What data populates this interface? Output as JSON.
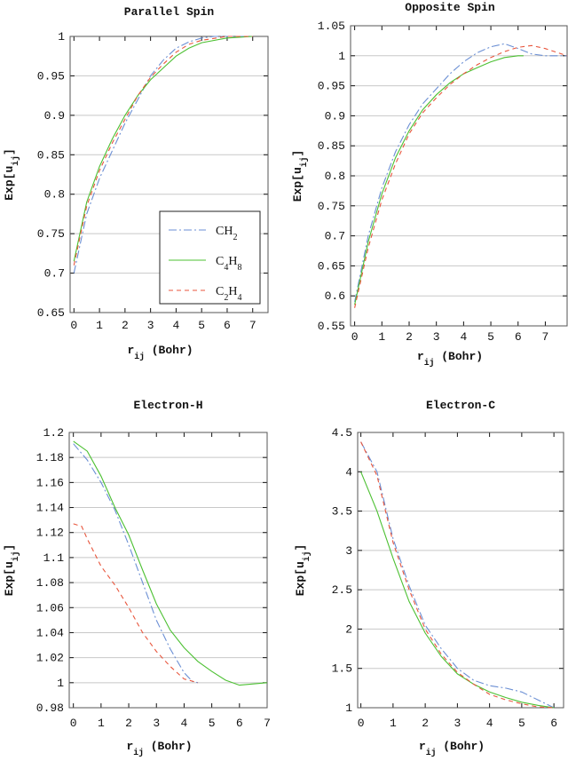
{
  "chart_data": [
    {
      "type": "line",
      "title": "Parallel Spin",
      "xlabel": "r_ij (Bohr)",
      "ylabel": "Exp[u_ij]",
      "xlim": [
        -0.15,
        7.6
      ],
      "ylim": [
        0.65,
        1.0
      ],
      "xticks": [
        0,
        1,
        2,
        3,
        4,
        5,
        6,
        7
      ],
      "yticks": [
        0.65,
        0.7,
        0.75,
        0.8,
        0.85,
        0.9,
        0.95,
        1
      ],
      "ytick_labels": [
        "0.65",
        "0.7",
        "0.75",
        "0.8",
        "0.85",
        "0.9",
        "0.95",
        "1"
      ],
      "grid": "horizontal",
      "legend": "bottom-right",
      "series": [
        {
          "name": "CH2",
          "color": "#6b8fd4",
          "style": "dash-dot",
          "x": [
            0,
            0.5,
            1,
            1.5,
            2,
            2.5,
            3,
            3.5,
            4,
            4.5,
            5,
            5.5,
            7
          ],
          "y": [
            0.7,
            0.775,
            0.82,
            0.855,
            0.89,
            0.92,
            0.95,
            0.97,
            0.985,
            0.993,
            0.998,
            1.0,
            1.0
          ]
        },
        {
          "name": "C4H8",
          "color": "#4cc032",
          "style": "solid",
          "x": [
            0,
            0.5,
            1,
            1.5,
            2,
            2.5,
            3,
            3.5,
            4,
            4.5,
            5,
            6,
            7
          ],
          "y": [
            0.715,
            0.79,
            0.835,
            0.87,
            0.9,
            0.925,
            0.945,
            0.96,
            0.975,
            0.985,
            0.992,
            0.998,
            1.0
          ]
        },
        {
          "name": "C2H4",
          "color": "#e8553c",
          "style": "dashed",
          "x": [
            0,
            0.5,
            1,
            1.5,
            2,
            2.5,
            3,
            3.5,
            4,
            4.5,
            5,
            6,
            7
          ],
          "y": [
            0.71,
            0.785,
            0.83,
            0.865,
            0.895,
            0.925,
            0.948,
            0.965,
            0.98,
            0.99,
            0.995,
            1.0,
            1.0
          ]
        }
      ]
    },
    {
      "type": "line",
      "title": "Opposite Spin",
      "xlabel": "r_ij (Bohr)",
      "ylabel": "Exp[u_ij]",
      "xlim": [
        -0.15,
        7.8
      ],
      "ylim": [
        0.55,
        1.05
      ],
      "xticks": [
        0,
        1,
        2,
        3,
        4,
        5,
        6,
        7
      ],
      "yticks": [
        0.55,
        0.6,
        0.65,
        0.7,
        0.75,
        0.8,
        0.85,
        0.9,
        0.95,
        1,
        1.05
      ],
      "ytick_labels": [
        "0.55",
        "0.6",
        "0.65",
        "0.7",
        "0.75",
        "0.8",
        "0.85",
        "0.9",
        "0.95",
        "1",
        "1.05"
      ],
      "grid": "horizontal",
      "series": [
        {
          "name": "CH2",
          "color": "#6b8fd4",
          "style": "dash-dot",
          "x": [
            0,
            0.5,
            1,
            1.5,
            2,
            2.5,
            3,
            3.5,
            4,
            4.5,
            5,
            5.5,
            6,
            6.5,
            7,
            7.8
          ],
          "y": [
            0.59,
            0.7,
            0.78,
            0.84,
            0.885,
            0.92,
            0.945,
            0.97,
            0.99,
            1.005,
            1.015,
            1.02,
            1.012,
            1.003,
            1.0,
            1.0
          ]
        },
        {
          "name": "C4H8",
          "color": "#4cc032",
          "style": "solid",
          "x": [
            0,
            0.5,
            1,
            1.5,
            2,
            2.5,
            3,
            3.5,
            4,
            4.5,
            5,
            5.5,
            6,
            6.2
          ],
          "y": [
            0.585,
            0.69,
            0.77,
            0.83,
            0.875,
            0.91,
            0.935,
            0.955,
            0.97,
            0.98,
            0.99,
            0.997,
            1.0,
            1.0
          ]
        },
        {
          "name": "C2H4",
          "color": "#e8553c",
          "style": "dashed",
          "x": [
            0,
            0.5,
            1,
            1.5,
            2,
            2.5,
            3,
            3.5,
            4,
            4.5,
            5,
            5.5,
            6,
            6.5,
            7,
            7.8
          ],
          "y": [
            0.58,
            0.68,
            0.76,
            0.82,
            0.87,
            0.905,
            0.93,
            0.952,
            0.97,
            0.985,
            0.997,
            1.007,
            1.014,
            1.017,
            1.012,
            1.0
          ]
        }
      ]
    },
    {
      "type": "line",
      "title": "Electron-H",
      "xlabel": "r_ij (Bohr)",
      "ylabel": "Exp[u_ij]",
      "xlim": [
        -0.15,
        7.0
      ],
      "ylim": [
        0.98,
        1.2
      ],
      "xticks": [
        0,
        1,
        2,
        3,
        4,
        5,
        6,
        7
      ],
      "yticks": [
        0.98,
        1,
        1.02,
        1.04,
        1.06,
        1.08,
        1.1,
        1.12,
        1.14,
        1.16,
        1.18,
        1.2
      ],
      "ytick_labels": [
        "0.98",
        "1",
        "1.02",
        "1.04",
        "1.06",
        "1.08",
        "1.1",
        "1.12",
        "1.14",
        "1.16",
        "1.18",
        "1.2"
      ],
      "grid": "horizontal",
      "series": [
        {
          "name": "CH2",
          "color": "#6b8fd4",
          "style": "dash-dot",
          "x": [
            0,
            0.5,
            1,
            1.5,
            2,
            2.5,
            3,
            3.5,
            4,
            4.3,
            4.5
          ],
          "y": [
            1.191,
            1.178,
            1.16,
            1.138,
            1.11,
            1.08,
            1.05,
            1.027,
            1.008,
            1.001,
            1.0
          ]
        },
        {
          "name": "C4H8",
          "color": "#4cc032",
          "style": "solid",
          "x": [
            0,
            0.5,
            1,
            1.5,
            2,
            2.5,
            3,
            3.5,
            4,
            4.5,
            5,
            5.5,
            6,
            6.5,
            7
          ],
          "y": [
            1.193,
            1.185,
            1.165,
            1.14,
            1.118,
            1.09,
            1.063,
            1.042,
            1.028,
            1.017,
            1.009,
            1.002,
            0.998,
            0.999,
            1.0
          ]
        },
        {
          "name": "C2H4",
          "color": "#e8553c",
          "style": "dashed",
          "x": [
            0,
            0.3,
            0.5,
            1,
            1.5,
            2,
            2.5,
            3,
            3.5,
            4,
            4.5
          ],
          "y": [
            1.127,
            1.125,
            1.115,
            1.093,
            1.078,
            1.06,
            1.04,
            1.025,
            1.013,
            1.003,
            1.0
          ]
        }
      ]
    },
    {
      "type": "line",
      "title": "Electron-C",
      "xlabel": "r_ij (Bohr)",
      "ylabel": "Exp[u_ij]",
      "xlim": [
        -0.1,
        6.3
      ],
      "ylim": [
        1,
        4.5
      ],
      "xticks": [
        0,
        1,
        2,
        3,
        4,
        5,
        6
      ],
      "yticks": [
        1,
        1.5,
        2,
        2.5,
        3,
        3.5,
        4,
        4.5
      ],
      "ytick_labels": [
        "1",
        "1.5",
        "2",
        "2.5",
        "3",
        "3.5",
        "4",
        "4.5"
      ],
      "grid": "horizontal",
      "series": [
        {
          "name": "CH2",
          "color": "#6b8fd4",
          "style": "dash-dot",
          "x": [
            0,
            0.5,
            1,
            1.5,
            2,
            2.5,
            3,
            3.5,
            4,
            4.5,
            5,
            5.5,
            6
          ],
          "y": [
            4.38,
            4.0,
            3.15,
            2.55,
            2.05,
            1.75,
            1.5,
            1.35,
            1.28,
            1.25,
            1.2,
            1.1,
            1.0
          ]
        },
        {
          "name": "C4H8",
          "color": "#4cc032",
          "style": "solid",
          "x": [
            0,
            0.5,
            1,
            1.5,
            2,
            2.5,
            3,
            3.5,
            4,
            4.5,
            5,
            5.5,
            6
          ],
          "y": [
            4.0,
            3.5,
            2.9,
            2.35,
            1.95,
            1.65,
            1.43,
            1.3,
            1.2,
            1.13,
            1.07,
            1.03,
            1.0
          ]
        },
        {
          "name": "C2H4",
          "color": "#e8553c",
          "style": "dashed",
          "x": [
            0,
            0.5,
            1,
            1.5,
            2,
            2.5,
            3,
            3.5,
            4,
            4.5,
            5,
            5.5,
            6
          ],
          "y": [
            4.38,
            3.95,
            3.1,
            2.5,
            2.0,
            1.68,
            1.45,
            1.3,
            1.17,
            1.1,
            1.05,
            1.01,
            1.0
          ]
        }
      ]
    }
  ]
}
